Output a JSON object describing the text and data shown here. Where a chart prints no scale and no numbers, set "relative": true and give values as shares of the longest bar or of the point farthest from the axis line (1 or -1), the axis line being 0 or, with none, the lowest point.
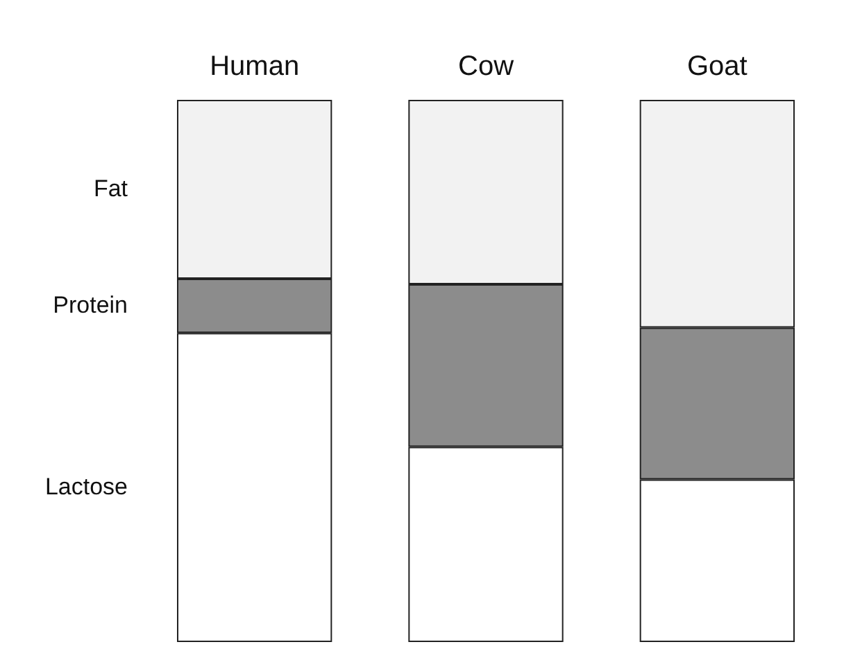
{
  "chart_data": {
    "type": "bar",
    "stacked": true,
    "relative": true,
    "categories": [
      "Human",
      "Cow",
      "Goat"
    ],
    "series": [
      {
        "name": "Lactose",
        "color": "#ffffff",
        "values": [
          0.57,
          0.36,
          0.3
        ]
      },
      {
        "name": "Protein",
        "color": "#8c8c8c",
        "values": [
          0.1,
          0.3,
          0.28
        ]
      },
      {
        "name": "Fat",
        "color": "#f2f2f2",
        "values": [
          0.33,
          0.34,
          0.42
        ]
      }
    ]
  }
}
